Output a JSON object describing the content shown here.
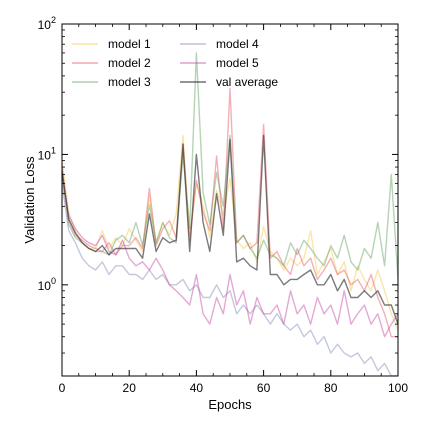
{
  "chart_data": {
    "type": "line",
    "xlabel": "Epochs",
    "ylabel": "Validation Loss",
    "xlim": [
      0,
      100
    ],
    "ylim": [
      0.2,
      100
    ],
    "yscale": "log",
    "grid": false,
    "legend_position": "top-left",
    "x_ticks": [
      0,
      20,
      40,
      60,
      80,
      100
    ],
    "x_tick_labels": [
      "0",
      "20",
      "40",
      "60",
      "80",
      "100"
    ],
    "y_ticks": [
      1,
      10,
      100
    ],
    "y_tick_base": "10",
    "y_tick_exponents": [
      "0",
      "1",
      "2"
    ],
    "x": [
      0,
      2,
      4,
      6,
      8,
      10,
      12,
      14,
      16,
      18,
      20,
      22,
      24,
      26,
      28,
      30,
      32,
      34,
      36,
      38,
      40,
      42,
      44,
      46,
      48,
      50,
      52,
      54,
      56,
      58,
      60,
      62,
      64,
      66,
      68,
      70,
      72,
      74,
      76,
      78,
      80,
      82,
      84,
      86,
      88,
      90,
      92,
      94,
      96,
      98,
      100
    ],
    "series": [
      {
        "name": "model 1",
        "color": "#f5c842",
        "values": [
          9.0,
          3.6,
          2.6,
          2.1,
          1.9,
          1.9,
          2.6,
          1.9,
          2.3,
          2.0,
          2.7,
          2.2,
          1.8,
          4.8,
          2.1,
          3.0,
          2.4,
          3.5,
          14.0,
          2.4,
          6.0,
          4.1,
          2.3,
          5.3,
          3.4,
          6.6,
          2.2,
          1.9,
          2.1,
          1.5,
          2.8,
          1.8,
          1.6,
          1.3,
          1.6,
          1.4,
          1.6,
          2.6,
          1.2,
          1.5,
          1.9,
          1.2,
          1.5,
          0.9,
          1.4,
          1.1,
          0.9,
          1.3,
          0.9,
          0.6,
          0.45
        ]
      },
      {
        "name": "model 2",
        "color": "#e8505b",
        "values": [
          8.0,
          3.1,
          2.4,
          2.2,
          2.0,
          1.9,
          1.8,
          2.1,
          1.7,
          2.0,
          2.0,
          2.3,
          1.9,
          5.5,
          2.0,
          2.7,
          3.1,
          2.3,
          12.0,
          2.2,
          6.3,
          3.6,
          2.6,
          9.7,
          2.7,
          32.0,
          2.1,
          2.4,
          1.9,
          2.1,
          17.0,
          1.6,
          1.8,
          1.4,
          1.2,
          1.9,
          1.4,
          1.6,
          1.1,
          1.3,
          1.6,
          1.2,
          1.3,
          1.0,
          1.1,
          0.9,
          1.2,
          0.8,
          0.6,
          0.4,
          0.4
        ]
      },
      {
        "name": "model 3",
        "color": "#5e9e5e",
        "values": [
          7.0,
          2.9,
          2.3,
          2.1,
          1.9,
          1.8,
          1.8,
          1.7,
          2.2,
          2.4,
          2.1,
          3.0,
          2.0,
          4.1,
          2.1,
          3.0,
          2.3,
          2.1,
          10.0,
          2.7,
          60.0,
          5.1,
          2.9,
          7.3,
          4.0,
          14.0,
          2.1,
          2.4,
          1.9,
          1.6,
          2.2,
          1.7,
          1.6,
          1.4,
          2.1,
          1.7,
          2.2,
          1.9,
          1.6,
          1.4,
          2.0,
          1.6,
          2.4,
          1.5,
          1.3,
          1.9,
          1.6,
          3.0,
          1.4,
          7.0,
          1.1
        ]
      },
      {
        "name": "model 4",
        "color": "#7a86b8",
        "values": [
          6.0,
          2.6,
          2.1,
          1.6,
          1.4,
          1.3,
          1.5,
          1.2,
          1.4,
          1.4,
          1.2,
          1.2,
          1.1,
          1.3,
          1.1,
          1.2,
          1.0,
          1.0,
          1.1,
          0.9,
          1.0,
          0.8,
          0.8,
          1.0,
          0.8,
          0.9,
          0.6,
          0.7,
          0.6,
          0.7,
          0.6,
          0.5,
          0.6,
          0.5,
          0.45,
          0.5,
          0.4,
          0.45,
          0.35,
          0.4,
          0.3,
          0.35,
          0.3,
          0.28,
          0.3,
          0.25,
          0.28,
          0.22,
          0.25,
          0.2,
          0.2
        ]
      },
      {
        "name": "model 5",
        "color": "#c040a0",
        "values": [
          7.0,
          3.4,
          2.7,
          2.3,
          2.1,
          2.0,
          2.4,
          1.8,
          1.7,
          2.2,
          1.6,
          1.4,
          1.5,
          1.3,
          1.6,
          1.3,
          1.0,
          0.9,
          0.8,
          0.7,
          1.2,
          0.6,
          0.5,
          0.8,
          0.6,
          1.2,
          0.7,
          0.9,
          0.5,
          0.8,
          0.6,
          0.6,
          0.7,
          0.5,
          0.9,
          0.6,
          0.7,
          0.5,
          0.8,
          0.6,
          0.7,
          0.5,
          0.9,
          0.5,
          0.6,
          0.7,
          0.5,
          0.6,
          0.4,
          0.5,
          0.6
        ]
      },
      {
        "name": "val average",
        "color": "#333333",
        "values": [
          7.5,
          3.2,
          2.5,
          2.1,
          1.9,
          1.8,
          2.0,
          1.7,
          1.9,
          1.9,
          1.9,
          1.9,
          1.6,
          3.5,
          1.8,
          2.3,
          2.1,
          2.2,
          12.0,
          1.8,
          10.0,
          3.0,
          1.8,
          5.0,
          2.4,
          13.0,
          1.5,
          1.6,
          1.4,
          1.3,
          14.0,
          1.2,
          1.2,
          1.0,
          1.1,
          1.1,
          1.2,
          1.3,
          1.0,
          1.0,
          1.2,
          0.9,
          1.1,
          0.8,
          0.8,
          0.9,
          0.8,
          0.9,
          0.7,
          0.7,
          0.5
        ]
      }
    ]
  }
}
